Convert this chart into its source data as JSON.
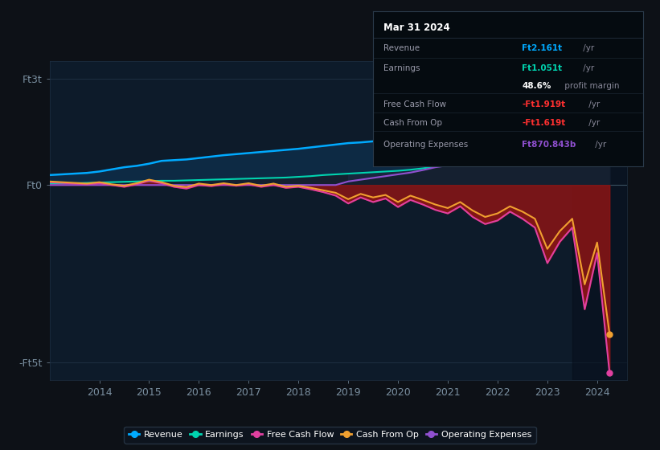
{
  "bg_color": "#0d1117",
  "plot_bg_color": "#0d1b2a",
  "grid_color": "#1e2f42",
  "tick_color": "#7a8fa0",
  "revenue_color": "#00aaff",
  "earnings_color": "#00d4b0",
  "fcf_color": "#e040a0",
  "cfop_color": "#f0a030",
  "opex_color": "#9050d0",
  "fill_rev_earn": "#0d2a44",
  "fill_earn_opex": "#1a2a40",
  "fill_earn_zero": "#152030",
  "fill_red": "#8b1515",
  "xlim": [
    2013.0,
    2024.6
  ],
  "ylim": [
    -5.5,
    3.5
  ],
  "ytick_vals": [
    -5,
    0,
    3
  ],
  "ytick_labels": [
    "-Ft5t",
    "Ft0",
    "Ft3t"
  ],
  "xtick_vals": [
    2014,
    2015,
    2016,
    2017,
    2018,
    2019,
    2020,
    2021,
    2022,
    2023,
    2024
  ],
  "years": [
    2013.0,
    2013.25,
    2013.5,
    2013.75,
    2014.0,
    2014.25,
    2014.5,
    2014.75,
    2015.0,
    2015.25,
    2015.5,
    2015.75,
    2016.0,
    2016.25,
    2016.5,
    2016.75,
    2017.0,
    2017.25,
    2017.5,
    2017.75,
    2018.0,
    2018.25,
    2018.5,
    2018.75,
    2019.0,
    2019.25,
    2019.5,
    2019.75,
    2020.0,
    2020.25,
    2020.5,
    2020.75,
    2021.0,
    2021.25,
    2021.5,
    2021.75,
    2022.0,
    2022.25,
    2022.5,
    2022.75,
    2023.0,
    2023.25,
    2023.5,
    2023.75,
    2024.0,
    2024.25
  ],
  "revenue": [
    0.28,
    0.3,
    0.32,
    0.34,
    0.38,
    0.44,
    0.5,
    0.54,
    0.6,
    0.68,
    0.7,
    0.72,
    0.76,
    0.8,
    0.84,
    0.87,
    0.9,
    0.93,
    0.96,
    0.99,
    1.02,
    1.06,
    1.1,
    1.14,
    1.18,
    1.2,
    1.23,
    1.26,
    1.3,
    1.34,
    1.38,
    1.42,
    1.5,
    1.6,
    1.68,
    1.76,
    1.85,
    1.9,
    1.95,
    2.0,
    2.05,
    2.1,
    2.14,
    2.18,
    2.161,
    2.22
  ],
  "earnings": [
    0.04,
    0.05,
    0.05,
    0.06,
    0.07,
    0.08,
    0.09,
    0.1,
    0.11,
    0.12,
    0.12,
    0.13,
    0.14,
    0.15,
    0.16,
    0.17,
    0.18,
    0.19,
    0.2,
    0.21,
    0.23,
    0.25,
    0.28,
    0.3,
    0.32,
    0.34,
    0.36,
    0.38,
    0.4,
    0.43,
    0.47,
    0.52,
    0.56,
    0.62,
    0.68,
    0.74,
    0.8,
    0.85,
    0.9,
    0.95,
    1.0,
    1.03,
    1.05,
    1.05,
    1.051,
    1.08
  ],
  "operating_expenses": [
    0.0,
    0.0,
    0.0,
    0.0,
    0.0,
    0.0,
    0.0,
    0.0,
    0.0,
    0.0,
    0.0,
    0.0,
    0.0,
    0.0,
    0.0,
    0.0,
    0.0,
    0.0,
    0.0,
    0.0,
    0.0,
    0.0,
    0.0,
    0.0,
    0.1,
    0.15,
    0.2,
    0.25,
    0.3,
    0.35,
    0.42,
    0.5,
    0.55,
    0.6,
    0.62,
    0.65,
    0.68,
    0.72,
    0.76,
    0.8,
    0.82,
    0.84,
    0.86,
    0.87,
    0.8708,
    0.9
  ],
  "free_cash_flow": [
    0.08,
    0.06,
    0.04,
    0.02,
    0.05,
    0.0,
    -0.05,
    0.02,
    0.12,
    0.05,
    -0.05,
    -0.1,
    0.0,
    -0.03,
    0.02,
    -0.02,
    0.02,
    -0.05,
    0.0,
    -0.08,
    -0.05,
    -0.12,
    -0.2,
    -0.3,
    -0.52,
    -0.35,
    -0.48,
    -0.38,
    -0.62,
    -0.42,
    -0.55,
    -0.7,
    -0.8,
    -0.6,
    -0.9,
    -1.1,
    -1.0,
    -0.75,
    -0.95,
    -1.2,
    -2.2,
    -1.6,
    -1.2,
    -3.5,
    -1.919,
    -5.3
  ],
  "cash_from_op": [
    0.1,
    0.08,
    0.06,
    0.04,
    0.08,
    0.02,
    -0.02,
    0.05,
    0.15,
    0.08,
    -0.02,
    -0.06,
    0.04,
    0.0,
    0.05,
    0.0,
    0.05,
    -0.02,
    0.04,
    -0.05,
    -0.02,
    -0.08,
    -0.15,
    -0.22,
    -0.4,
    -0.25,
    -0.35,
    -0.28,
    -0.48,
    -0.3,
    -0.42,
    -0.55,
    -0.65,
    -0.48,
    -0.72,
    -0.9,
    -0.8,
    -0.6,
    -0.75,
    -0.95,
    -1.8,
    -1.3,
    -0.95,
    -2.8,
    -1.619,
    -4.2
  ],
  "legend_items": [
    {
      "label": "Revenue",
      "color": "#00aaff"
    },
    {
      "label": "Earnings",
      "color": "#00d4b0"
    },
    {
      "label": "Free Cash Flow",
      "color": "#e040a0"
    },
    {
      "label": "Cash From Op",
      "color": "#f0a030"
    },
    {
      "label": "Operating Expenses",
      "color": "#9050d0"
    }
  ],
  "info_date": "Mar 31 2024",
  "info_rows": [
    {
      "label": "Revenue",
      "value": "Ft2.161t",
      "unit": " /yr",
      "value_color": "#00aaff"
    },
    {
      "label": "Earnings",
      "value": "Ft1.051t",
      "unit": " /yr",
      "value_color": "#00d4b0"
    },
    {
      "label": "",
      "value": "48.6%",
      "unit": " profit margin",
      "value_color": "#ffffff"
    },
    {
      "label": "Free Cash Flow",
      "value": "-Ft1.919t",
      "unit": " /yr",
      "value_color": "#ff3030"
    },
    {
      "label": "Cash From Op",
      "value": "-Ft1.619t",
      "unit": " /yr",
      "value_color": "#ff3030"
    },
    {
      "label": "Operating Expenses",
      "value": "Ft870.843b",
      "unit": " /yr",
      "value_color": "#9050d0"
    }
  ],
  "highlight_x_start": 2023.5,
  "highlight_x_end": 2024.6
}
